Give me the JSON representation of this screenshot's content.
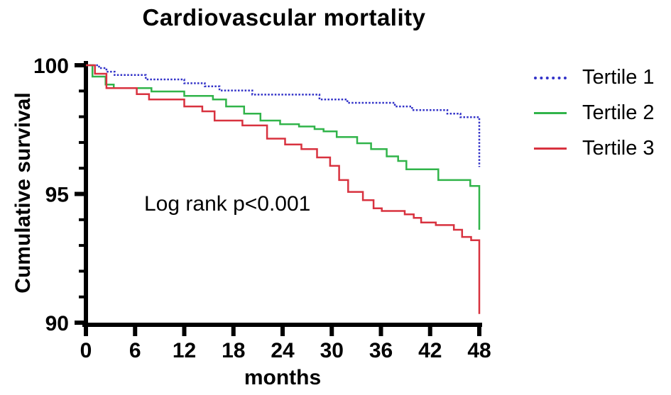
{
  "chart_data": {
    "type": "line",
    "subtype": "kaplan-meier-step",
    "title": "Cardiovascular mortality",
    "xlabel": "months",
    "ylabel": "Cumulative survival",
    "annotation": "Log rank p<0.001",
    "xlim": [
      0,
      48
    ],
    "ylim": [
      90,
      100
    ],
    "x_ticks": [
      0,
      6,
      12,
      18,
      24,
      30,
      36,
      42,
      48
    ],
    "y_ticks_major": [
      100,
      95,
      90
    ],
    "y_ticks_minor": [
      99,
      98,
      97,
      96,
      94,
      93,
      92,
      91
    ],
    "grid": false,
    "legend_position": "right",
    "axis_color": "#000000",
    "series": [
      {
        "name": "Tertile 1",
        "color": "#3232c8",
        "line_style": "dotted",
        "step_points": [
          [
            0,
            100
          ],
          [
            1.6,
            99.89
          ],
          [
            2.5,
            99.75
          ],
          [
            3.5,
            99.62
          ],
          [
            7.3,
            99.45
          ],
          [
            12,
            99.3
          ],
          [
            14.5,
            99.18
          ],
          [
            16.3,
            99.02
          ],
          [
            20.3,
            98.86
          ],
          [
            28.5,
            98.67
          ],
          [
            31.9,
            98.54
          ],
          [
            37.7,
            98.4
          ],
          [
            39.8,
            98.26
          ],
          [
            44.1,
            98.12
          ],
          [
            45.7,
            97.98
          ],
          [
            48,
            96.05
          ]
        ]
      },
      {
        "name": "Tertile 2",
        "color": "#31b44a",
        "line_style": "solid",
        "step_points": [
          [
            0,
            100
          ],
          [
            0.8,
            99.56
          ],
          [
            2.4,
            99.25
          ],
          [
            3.4,
            99.11
          ],
          [
            8,
            98.98
          ],
          [
            12,
            98.81
          ],
          [
            15.5,
            98.67
          ],
          [
            17.1,
            98.4
          ],
          [
            19.3,
            98.12
          ],
          [
            21.3,
            97.85
          ],
          [
            23.7,
            97.71
          ],
          [
            26,
            97.62
          ],
          [
            27.9,
            97.52
          ],
          [
            29,
            97.43
          ],
          [
            30.6,
            97.21
          ],
          [
            33.1,
            96.97
          ],
          [
            34.8,
            96.74
          ],
          [
            36.7,
            96.46
          ],
          [
            38.1,
            96.28
          ],
          [
            39.1,
            95.96
          ],
          [
            43,
            95.54
          ],
          [
            46.9,
            95.31
          ],
          [
            48,
            93.61
          ]
        ]
      },
      {
        "name": "Tertile 3",
        "color": "#d8323f",
        "line_style": "solid",
        "step_points": [
          [
            0,
            100
          ],
          [
            1.1,
            99.67
          ],
          [
            2.5,
            99.11
          ],
          [
            6.2,
            98.88
          ],
          [
            7.7,
            98.67
          ],
          [
            12,
            98.4
          ],
          [
            14.2,
            98.21
          ],
          [
            15.7,
            97.85
          ],
          [
            19.1,
            97.66
          ],
          [
            22.1,
            97.15
          ],
          [
            24.3,
            96.92
          ],
          [
            26.3,
            96.74
          ],
          [
            28.2,
            96.42
          ],
          [
            29.8,
            96.09
          ],
          [
            30.9,
            95.54
          ],
          [
            32,
            95.08
          ],
          [
            33.8,
            94.76
          ],
          [
            35.1,
            94.44
          ],
          [
            36.1,
            94.34
          ],
          [
            38.9,
            94.21
          ],
          [
            40,
            94.07
          ],
          [
            40.9,
            93.89
          ],
          [
            42.7,
            93.79
          ],
          [
            44.9,
            93.61
          ],
          [
            45.9,
            93.33
          ],
          [
            47,
            93.2
          ],
          [
            48,
            90.34
          ]
        ]
      }
    ]
  }
}
